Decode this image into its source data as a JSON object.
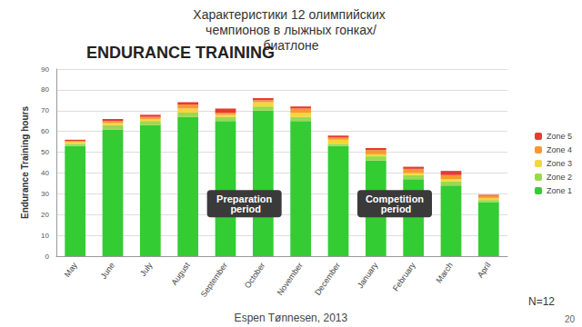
{
  "chart_data": {
    "type": "bar",
    "title": "Характеристики 12 олимпийских чемпионов в лыжных гонках/биатлоне",
    "subtitle": "ENDURANCE TRAINING",
    "y_label": "Endurance Training hours",
    "categories": [
      "May",
      "June",
      "July",
      "August",
      "September",
      "October",
      "November",
      "December",
      "January",
      "February",
      "March",
      "April"
    ],
    "series": [
      {
        "name": "Zone 1",
        "color": "#33cc33",
        "values": [
          53,
          61,
          63,
          67,
          65,
          70,
          65,
          53,
          46,
          37,
          34,
          26
        ]
      },
      {
        "name": "Zone 2",
        "color": "#9ad94f",
        "values": [
          1,
          2,
          2,
          2,
          2,
          2,
          2,
          1,
          2,
          2,
          2,
          1
        ]
      },
      {
        "name": "Zone 3",
        "color": "#f5d63a",
        "values": [
          1,
          1,
          1,
          2,
          1,
          2,
          2,
          2,
          1,
          1,
          1,
          1
        ]
      },
      {
        "name": "Zone 4",
        "color": "#f59a32",
        "values": [
          0.5,
          1,
          1,
          2,
          1,
          1,
          2,
          1,
          2,
          2,
          2,
          1
        ]
      },
      {
        "name": "Zone 5",
        "color": "#e8392f",
        "values": [
          0.5,
          1,
          1,
          1,
          2,
          1,
          1,
          1,
          1,
          1,
          2,
          0.5
        ]
      }
    ],
    "stacked": true,
    "ylim": [
      0,
      90
    ],
    "yticks": [
      0,
      10,
      20,
      30,
      40,
      50,
      60,
      70,
      80,
      90
    ],
    "grid": true,
    "legend": "right",
    "annotations": [
      "Preparation period",
      "Competition period",
      "N=12",
      "Espen Tønnesen, 2013",
      "20"
    ]
  }
}
